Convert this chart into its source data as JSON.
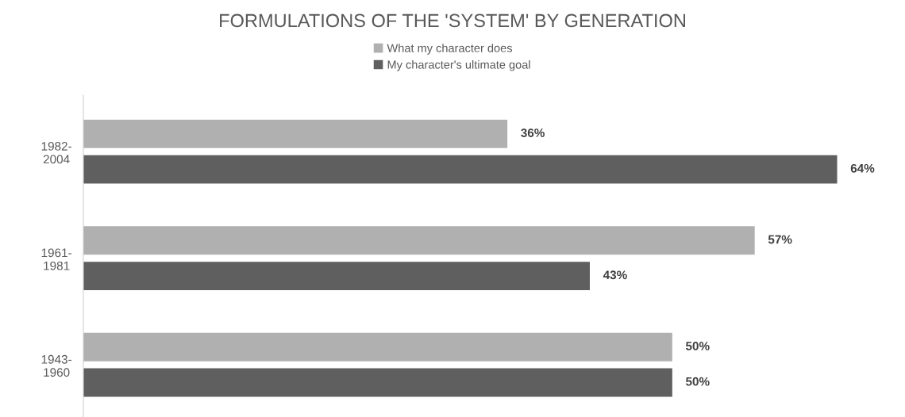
{
  "chart_data": {
    "type": "bar",
    "orientation": "horizontal",
    "title": "FORMULATIONS OF THE 'SYSTEM' BY GENERATION",
    "categories": [
      "1982-\n2004",
      "1961-\n1981",
      "1943-\n1960"
    ],
    "series": [
      {
        "name": "What my character does",
        "color": "#b0b0b0",
        "values": [
          36,
          57,
          50
        ],
        "value_labels": [
          "36%",
          "57%",
          "50%"
        ]
      },
      {
        "name": "My character's ultimate goal",
        "color": "#5f5f5f",
        "values": [
          64,
          43,
          50
        ],
        "value_labels": [
          "64%",
          "43%",
          "50%"
        ]
      }
    ],
    "legend": "top",
    "grid": false
  }
}
